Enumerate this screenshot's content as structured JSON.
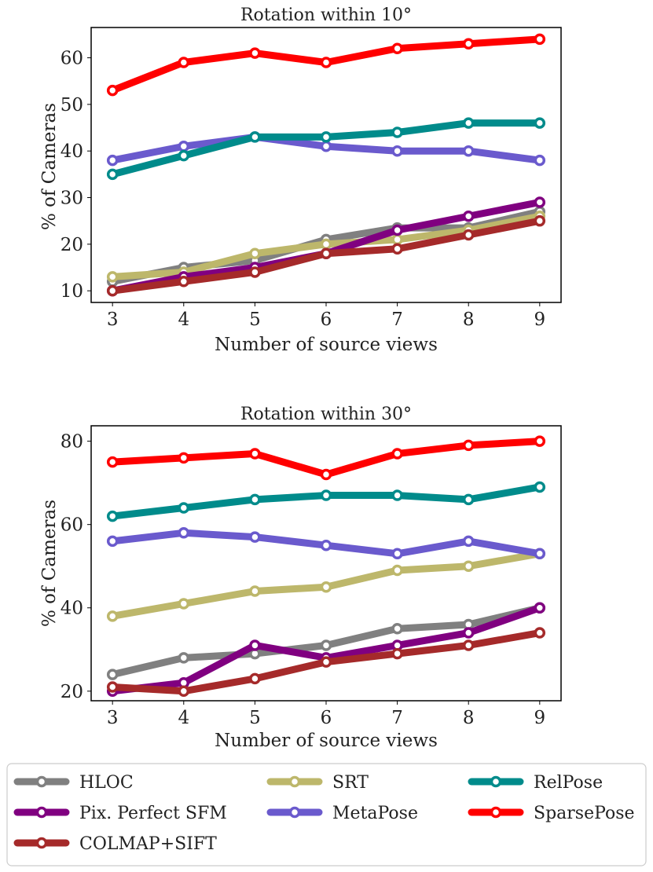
{
  "legend": {
    "entries": [
      {
        "name": "HLOC",
        "color": "#808080"
      },
      {
        "name": "SRT",
        "color": "#bdb76b"
      },
      {
        "name": "RelPose",
        "color": "#008b8b"
      },
      {
        "name": "Pix. Perfect SFM",
        "color": "#800080"
      },
      {
        "name": "MetaPose",
        "color": "#6a5acd"
      },
      {
        "name": "SparsePose",
        "color": "#ff0000"
      },
      {
        "name": "COLMAP+SIFT",
        "color": "#a52a2a"
      }
    ]
  },
  "chart_data": [
    {
      "type": "line",
      "title": "Rotation within 10°",
      "xlabel": "Number of source views",
      "ylabel": "% of Cameras",
      "x": [
        3,
        4,
        5,
        6,
        7,
        8,
        9
      ],
      "xlim": [
        2.7,
        9.3
      ],
      "ylim": [
        7.5,
        66.5
      ],
      "yticks": [
        10,
        20,
        30,
        40,
        50,
        60
      ],
      "grid": false,
      "series": [
        {
          "name": "HLOC",
          "color": "#808080",
          "values": [
            12,
            15,
            16.5,
            21,
            23.5,
            23.5,
            27
          ]
        },
        {
          "name": "SRT",
          "color": "#bdb76b",
          "values": [
            13,
            14,
            18,
            20,
            21,
            23,
            26
          ]
        },
        {
          "name": "MetaPose",
          "color": "#6a5acd",
          "values": [
            38,
            41,
            43,
            41,
            40,
            40,
            38
          ]
        },
        {
          "name": "RelPose",
          "color": "#008b8b",
          "values": [
            35,
            39,
            43,
            43,
            44,
            46,
            46
          ]
        },
        {
          "name": "Pix. Perfect SFM",
          "color": "#800080",
          "values": [
            10,
            13,
            15,
            18,
            23,
            26,
            29
          ]
        },
        {
          "name": "COLMAP+SIFT",
          "color": "#a52a2a",
          "values": [
            10,
            12,
            14,
            18,
            19,
            22,
            25
          ]
        },
        {
          "name": "SparsePose",
          "color": "#ff0000",
          "values": [
            53,
            59,
            61,
            59,
            62,
            63,
            64
          ]
        }
      ]
    },
    {
      "type": "line",
      "title": "Rotation within 30°",
      "xlabel": "Number of source views",
      "ylabel": "% of Cameras",
      "x": [
        3,
        4,
        5,
        6,
        7,
        8,
        9
      ],
      "xlim": [
        2.7,
        9.3
      ],
      "ylim": [
        17.7,
        83.7
      ],
      "yticks": [
        20,
        40,
        60,
        80
      ],
      "grid": false,
      "series": [
        {
          "name": "HLOC",
          "color": "#808080",
          "values": [
            24,
            28,
            29,
            31,
            35,
            36,
            40
          ]
        },
        {
          "name": "SRT",
          "color": "#bdb76b",
          "values": [
            38,
            41,
            44,
            45,
            49,
            50,
            53
          ]
        },
        {
          "name": "MetaPose",
          "color": "#6a5acd",
          "values": [
            56,
            58,
            57,
            55,
            53,
            56,
            53
          ]
        },
        {
          "name": "RelPose",
          "color": "#008b8b",
          "values": [
            62,
            64,
            66,
            67,
            67,
            66,
            69
          ]
        },
        {
          "name": "Pix. Perfect SFM",
          "color": "#800080",
          "values": [
            20,
            22,
            31,
            28,
            31,
            34,
            40
          ]
        },
        {
          "name": "COLMAP+SIFT",
          "color": "#a52a2a",
          "values": [
            21,
            20,
            23,
            27,
            29,
            31,
            34
          ]
        },
        {
          "name": "SparsePose",
          "color": "#ff0000",
          "values": [
            75,
            76,
            77,
            72,
            77,
            79,
            80
          ]
        }
      ]
    }
  ]
}
